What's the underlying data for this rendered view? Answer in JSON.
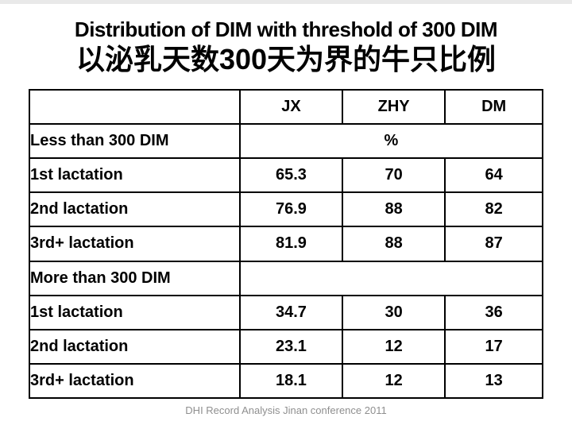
{
  "slide": {
    "title": "Distribution of DIM with threshold of 300 DIM",
    "subtitle": "以泌乳天数300天为界的牛只比例",
    "footer": "DHI Record Analysis Jinan conference 2011"
  },
  "colors": {
    "title": "#000000",
    "subtitle": "#000000",
    "highlight_red": "#b22222",
    "footer_gray": "#8f8f8f",
    "table_border": "#000000"
  },
  "table": {
    "header": {
      "columns": [
        "JX",
        "ZHY",
        "DM"
      ]
    },
    "unit": "%",
    "rows": [
      {
        "label": "Less than 300 DIM",
        "merged": "%"
      },
      {
        "label": "1st lactation",
        "values": [
          "65.3",
          "70",
          "64"
        ]
      },
      {
        "label": "2nd lactation",
        "values": [
          "76.9",
          "88",
          "82"
        ]
      },
      {
        "label": "3rd+ lactation",
        "values": [
          "81.9",
          "88",
          "87"
        ]
      },
      {
        "label": "More than 300 DIM",
        "merged": ""
      },
      {
        "label": "1st lactation",
        "values": [
          "34.7",
          "30",
          "36"
        ]
      },
      {
        "label": "2nd lactation",
        "values": [
          "23.1",
          "12",
          "17"
        ]
      },
      {
        "label": "3rd+ lactation",
        "values": [
          "18.1",
          "12",
          "13"
        ]
      }
    ]
  },
  "chart_data": {
    "type": "table",
    "title": "Distribution of DIM with threshold of 300 DIM",
    "columns": [
      "",
      "JX",
      "ZHY",
      "DM"
    ],
    "unit": "%",
    "sections": [
      {
        "section": "Less than 300 DIM",
        "rows": [
          {
            "label": "1st lactation",
            "JX": 65.3,
            "ZHY": 70,
            "DM": 64
          },
          {
            "label": "2nd lactation",
            "JX": 76.9,
            "ZHY": 88,
            "DM": 82
          },
          {
            "label": "3rd+ lactation",
            "JX": 81.9,
            "ZHY": 88,
            "DM": 87
          }
        ]
      },
      {
        "section": "More than 300 DIM",
        "rows": [
          {
            "label": "1st lactation",
            "JX": 34.7,
            "ZHY": 30,
            "DM": 36
          },
          {
            "label": "2nd lactation",
            "JX": 23.1,
            "ZHY": 12,
            "DM": 17
          },
          {
            "label": "3rd+ lactation",
            "JX": 18.1,
            "ZHY": 12,
            "DM": 13
          }
        ]
      }
    ],
    "red_highlighted_values": [
      76.9,
      81.9,
      23.1,
      18.1
    ]
  }
}
